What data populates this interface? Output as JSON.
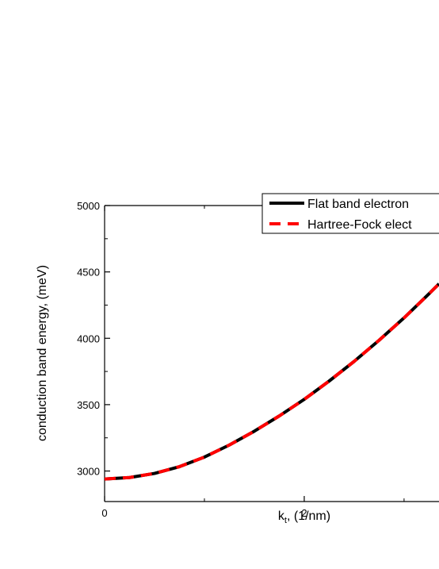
{
  "chart_data": {
    "type": "line",
    "xlabel_main": "k",
    "xlabel_sub": "t",
    "xlabel_rest": ", (1/nm)",
    "ylabel": "conduction band energy, (meV)",
    "xlim": [
      0,
      3.35
    ],
    "ylim": [
      2770,
      5000
    ],
    "x_ticks": [
      0,
      2
    ],
    "x_tick_labels": [
      "0",
      "2"
    ],
    "y_ticks": [
      3000,
      3500,
      4000,
      4500,
      5000
    ],
    "y_tick_labels": [
      "3000",
      "3500",
      "4000",
      "4500",
      "5000"
    ],
    "legend_position": "top-right",
    "series": [
      {
        "name": "Flat band electron",
        "color": "#000000",
        "style": "solid",
        "x": [
          0,
          0.25,
          0.5,
          0.75,
          1.0,
          1.25,
          1.5,
          1.75,
          2.0,
          2.25,
          2.5,
          2.75,
          3.0,
          3.25,
          3.35
        ],
        "y": [
          2940,
          2951,
          2982,
          3033,
          3105,
          3196,
          3300,
          3415,
          3540,
          3678,
          3826,
          3985,
          4154,
          4335,
          4410
        ]
      },
      {
        "name": "Hartree-Fock elect",
        "color": "#ff0000",
        "style": "dashed",
        "x": [
          0,
          0.25,
          0.5,
          0.75,
          1.0,
          1.25,
          1.5,
          1.75,
          2.0,
          2.25,
          2.5,
          2.75,
          3.0,
          3.25,
          3.35
        ],
        "y": [
          2940,
          2951,
          2982,
          3033,
          3105,
          3196,
          3300,
          3415,
          3540,
          3678,
          3826,
          3985,
          4154,
          4335,
          4410
        ]
      }
    ]
  }
}
